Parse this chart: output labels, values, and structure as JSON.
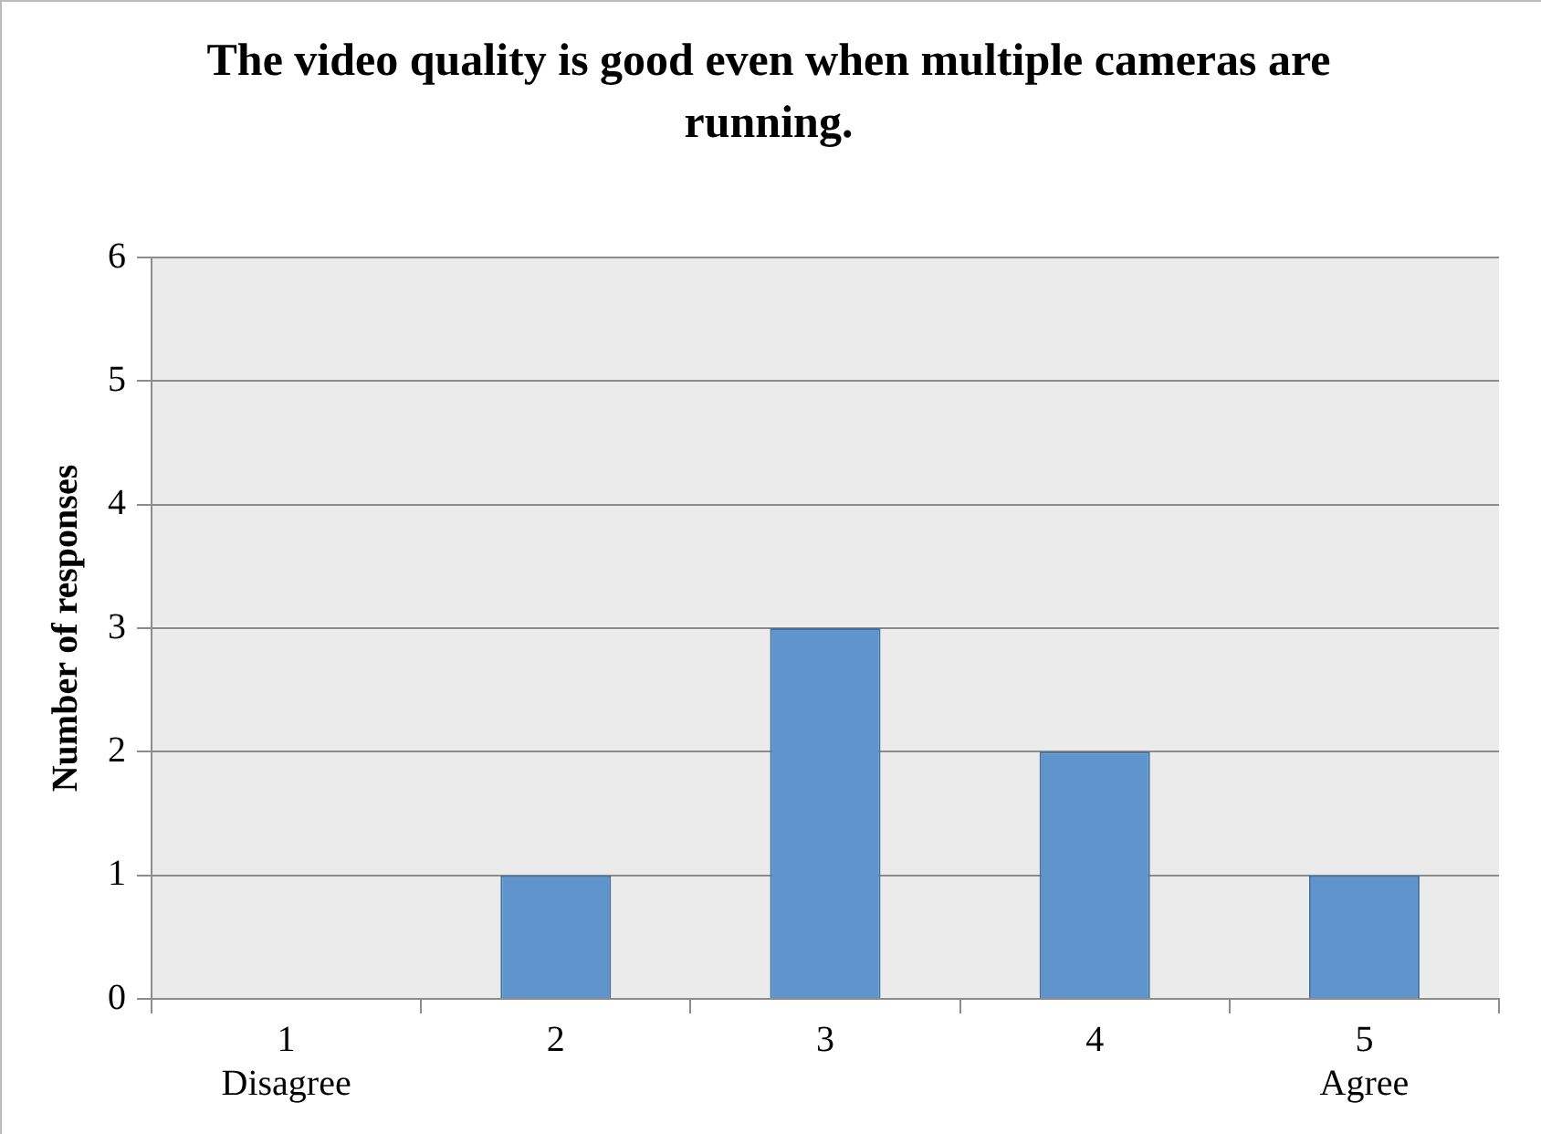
{
  "chart_data": {
    "type": "bar",
    "title": "The video quality is good even when multiple cameras are running.",
    "ylabel": "Number of responses",
    "categories": [
      "1\nDisagree",
      "2",
      "3",
      "4",
      "5\nAgree"
    ],
    "values": [
      0,
      1,
      3,
      2,
      1
    ],
    "color": "#5f95cc",
    "ylim": [
      0,
      6
    ],
    "yticks": [
      0,
      1,
      2,
      3,
      4,
      5,
      6
    ],
    "grid": "y",
    "legend": false
  }
}
